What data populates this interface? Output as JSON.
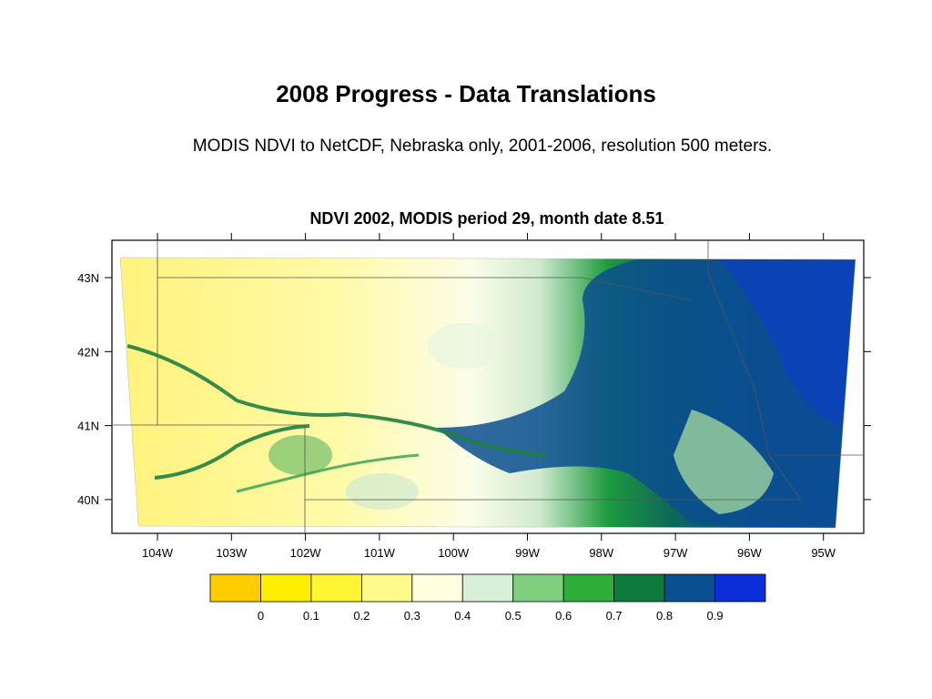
{
  "slide": {
    "title": "2008 Progress - Data Translations",
    "subtitle": "MODIS NDVI to NetCDF, Nebraska only, 2001-2006, resolution 500 meters."
  },
  "map": {
    "title": "NDVI 2002, MODIS period 29, month date 8.51",
    "lon_labels": [
      "104W",
      "103W",
      "102W",
      "101W",
      "100W",
      "99W",
      "98W",
      "97W",
      "96W",
      "95W"
    ],
    "lat_labels": [
      "43N",
      "42N",
      "41N",
      "40N"
    ],
    "region": "Nebraska"
  },
  "colorbar": {
    "labels": [
      "0",
      "0.1",
      "0.2",
      "0.3",
      "0.4",
      "0.5",
      "0.6",
      "0.7",
      "0.8",
      "0.9"
    ],
    "colors": [
      "#ffcc00",
      "#ffee00",
      "#fff533",
      "#fffa8a",
      "#ffffe0",
      "#d8f0d8",
      "#7fcf7f",
      "#2fad3a",
      "#0c7a3a",
      "#0a4f8f",
      "#0a2fd8"
    ]
  }
}
